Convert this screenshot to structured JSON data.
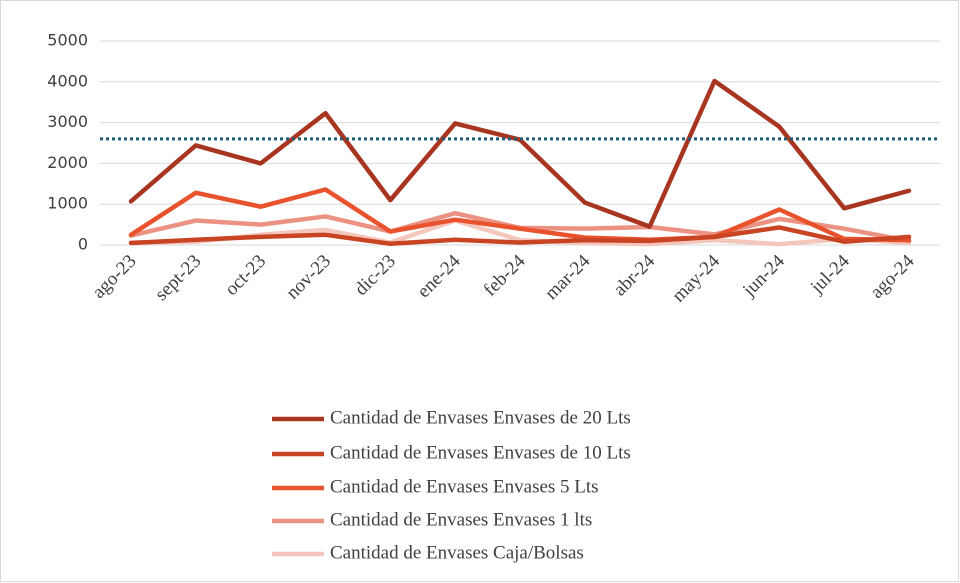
{
  "chart_data": {
    "type": "line",
    "categories": [
      "ago-23",
      "sept-23",
      "oct-23",
      "nov-23",
      "dic-23",
      "ene-24",
      "feb-24",
      "mar-24",
      "abr-24",
      "may-24",
      "jun-24",
      "jul-24",
      "ago-24"
    ],
    "series": [
      {
        "name": "Cantidad de Envases Envases de 20 Lts",
        "color": "#a83520",
        "values": [
          1070,
          2440,
          2000,
          3230,
          1100,
          2980,
          2580,
          1040,
          450,
          4020,
          2900,
          900,
          1330
        ]
      },
      {
        "name": "Cantidad de Envases Envases de 10 Lts",
        "color": "#c94423",
        "values": [
          50,
          130,
          200,
          250,
          30,
          130,
          60,
          120,
          100,
          200,
          430,
          80,
          200
        ]
      },
      {
        "name": "Cantidad de Envases Envases 5 Lts",
        "color": "#e8522c",
        "values": [
          250,
          1280,
          940,
          1360,
          330,
          620,
          400,
          180,
          130,
          200,
          870,
          150,
          120
        ]
      },
      {
        "name": "Cantidad de Envases Envases 1 lts",
        "color": "#ec9283",
        "values": [
          230,
          600,
          500,
          700,
          330,
          780,
          420,
          400,
          440,
          260,
          640,
          400,
          100
        ]
      },
      {
        "name": "Cantidad de Envases Caja/Bolsas",
        "color": "#f5c6bc",
        "values": [
          60,
          80,
          250,
          370,
          60,
          600,
          120,
          50,
          20,
          120,
          20,
          150,
          50
        ]
      }
    ],
    "reference_line": {
      "value": 2600,
      "color": "#1f5b78"
    },
    "ylim": [
      0,
      5000
    ],
    "yticks": [
      0,
      1000,
      2000,
      3000,
      4000,
      5000
    ],
    "grid": true,
    "legend": "bottom"
  }
}
